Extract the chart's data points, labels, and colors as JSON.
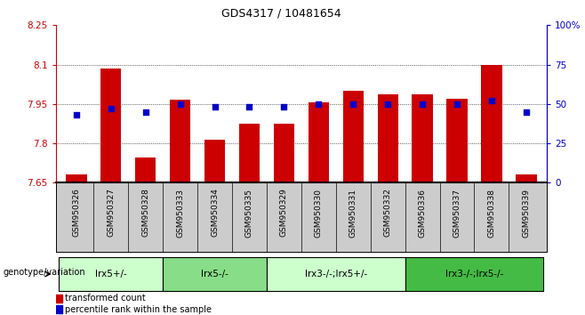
{
  "title": "GDS4317 / 10481654",
  "samples": [
    "GSM950326",
    "GSM950327",
    "GSM950328",
    "GSM950333",
    "GSM950334",
    "GSM950335",
    "GSM950329",
    "GSM950330",
    "GSM950331",
    "GSM950332",
    "GSM950336",
    "GSM950337",
    "GSM950338",
    "GSM950339"
  ],
  "bar_values": [
    7.68,
    8.085,
    7.745,
    7.965,
    7.815,
    7.875,
    7.875,
    7.955,
    8.0,
    7.985,
    7.985,
    7.97,
    8.1,
    7.68
  ],
  "percentile_values": [
    43,
    47,
    45,
    50,
    48,
    48,
    48,
    50,
    50,
    50,
    50,
    50,
    52,
    45
  ],
  "ylim_left": [
    7.65,
    8.25
  ],
  "ylim_right": [
    0,
    100
  ],
  "yticks_left": [
    7.65,
    7.8,
    7.95,
    8.1,
    8.25
  ],
  "ytick_labels_left": [
    "7.65",
    "7.8",
    "7.95",
    "8.1",
    "8.25"
  ],
  "yticks_right": [
    0,
    25,
    50,
    75,
    100
  ],
  "ytick_labels_right": [
    "0",
    "25",
    "50",
    "75",
    "100%"
  ],
  "bar_color": "#cc0000",
  "percentile_color": "#0000cc",
  "grid_color": "#000000",
  "background_color": "#ffffff",
  "plot_bg_color": "#ffffff",
  "sample_bg_color": "#cccccc",
  "genotype_groups": [
    {
      "label": "lrx5+/-",
      "start": 0,
      "end": 3,
      "color": "#ccffcc"
    },
    {
      "label": "lrx5-/-",
      "start": 3,
      "end": 6,
      "color": "#88dd88"
    },
    {
      "label": "lrx3-/-;lrx5+/-",
      "start": 6,
      "end": 10,
      "color": "#ccffcc"
    },
    {
      "label": "lrx3-/-;lrx5-/-",
      "start": 10,
      "end": 14,
      "color": "#44bb44"
    }
  ],
  "legend_items": [
    {
      "label": "transformed count",
      "color": "#cc0000"
    },
    {
      "label": "percentile rank within the sample",
      "color": "#0000cc"
    }
  ],
  "xlabel_genotype": "genotype/variation"
}
